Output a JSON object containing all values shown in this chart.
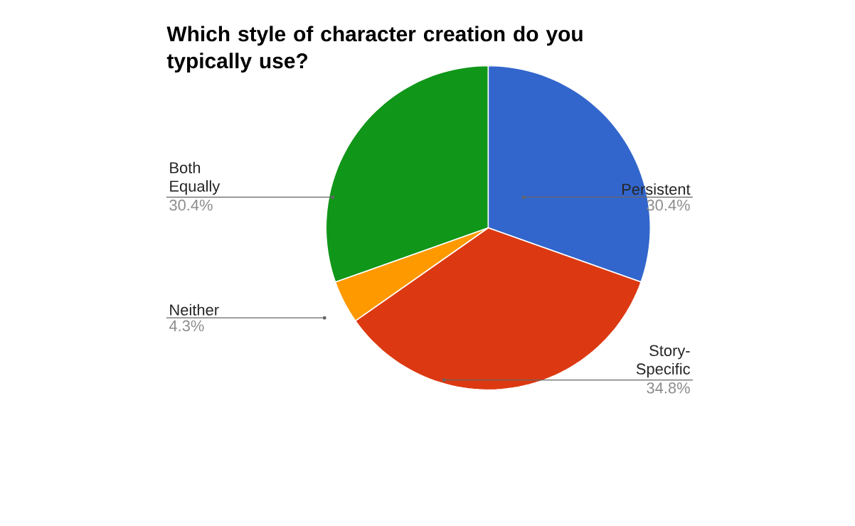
{
  "chart_data": {
    "type": "pie",
    "title": "Which style of character creation do you typically use?",
    "categories": [
      "Persistent",
      "Story-Specific",
      "Neither",
      "Both Equally"
    ],
    "values": [
      30.4,
      34.8,
      4.3,
      30.4
    ],
    "colors": [
      "#3366cc",
      "#dc3912",
      "#ff9900",
      "#109618"
    ],
    "value_labels": [
      "30.4%",
      "34.8%",
      "4.3%",
      "30.4%"
    ]
  }
}
